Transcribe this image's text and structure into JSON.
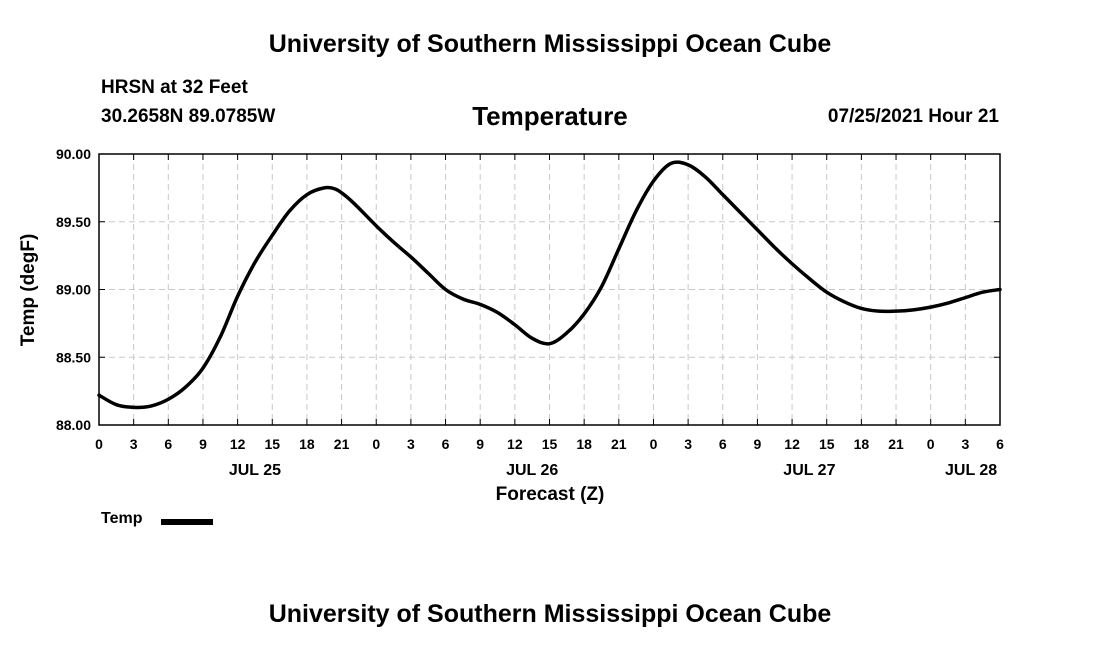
{
  "header": {
    "top_title": "University of Southern Mississippi Ocean Cube",
    "station": "HRSN at 32 Feet",
    "coords": "30.2658N  89.0785W",
    "datetime": "07/25/2021 Hour 21"
  },
  "footer": {
    "bottom_title": "University of Southern Mississippi Ocean Cube"
  },
  "legend": {
    "label": "Temp",
    "color": "#000000"
  },
  "chart_data": {
    "type": "line",
    "title": "Temperature",
    "xlabel": "Forecast (Z)",
    "ylabel": "Temp (degF)",
    "xlim": [
      0,
      78
    ],
    "ylim": [
      88.0,
      90.0
    ],
    "grid": true,
    "yticks": [
      "88.00",
      "88.50",
      "89.00",
      "89.50",
      "90.00"
    ],
    "xtick_labels": [
      "0",
      "3",
      "6",
      "9",
      "12",
      "15",
      "18",
      "21",
      "0",
      "3",
      "6",
      "9",
      "12",
      "15",
      "18",
      "21",
      "0",
      "3",
      "6",
      "9",
      "12",
      "15",
      "18",
      "21",
      "0",
      "3",
      "6"
    ],
    "date_labels": [
      {
        "hours": 13.5,
        "label": "JUL 25"
      },
      {
        "hours": 37.5,
        "label": "JUL 26"
      },
      {
        "hours": 61.5,
        "label": "JUL 27"
      },
      {
        "hours": 75.5,
        "label": "JUL 28"
      }
    ],
    "series": [
      {
        "name": "Temp",
        "x": [
          0,
          1.5,
          3,
          4.5,
          6,
          7.5,
          9,
          10.5,
          12,
          13.5,
          15,
          16.5,
          18,
          19.5,
          20.5,
          21.5,
          22.5,
          24,
          25.5,
          27,
          28.5,
          30,
          31.5,
          33,
          34.5,
          36,
          37.5,
          39,
          40.5,
          42,
          43.5,
          45,
          46.5,
          48,
          49.5,
          51,
          52.5,
          54,
          55.5,
          57,
          58.5,
          60,
          61.5,
          63,
          64.5,
          66,
          67.5,
          69,
          70.5,
          72,
          73.5,
          75,
          76.5,
          78
        ],
        "values": [
          88.22,
          88.15,
          88.13,
          88.14,
          88.19,
          88.28,
          88.42,
          88.65,
          88.95,
          89.2,
          89.4,
          89.58,
          89.7,
          89.75,
          89.74,
          89.68,
          89.6,
          89.47,
          89.35,
          89.24,
          89.12,
          89.0,
          88.93,
          88.89,
          88.83,
          88.74,
          88.64,
          88.6,
          88.68,
          88.82,
          89.02,
          89.3,
          89.58,
          89.8,
          89.93,
          89.92,
          89.83,
          89.7,
          89.57,
          89.44,
          89.31,
          89.19,
          89.08,
          88.98,
          88.91,
          88.86,
          88.84,
          88.84,
          88.85,
          88.87,
          88.9,
          88.94,
          88.98,
          89.0
        ]
      }
    ]
  }
}
